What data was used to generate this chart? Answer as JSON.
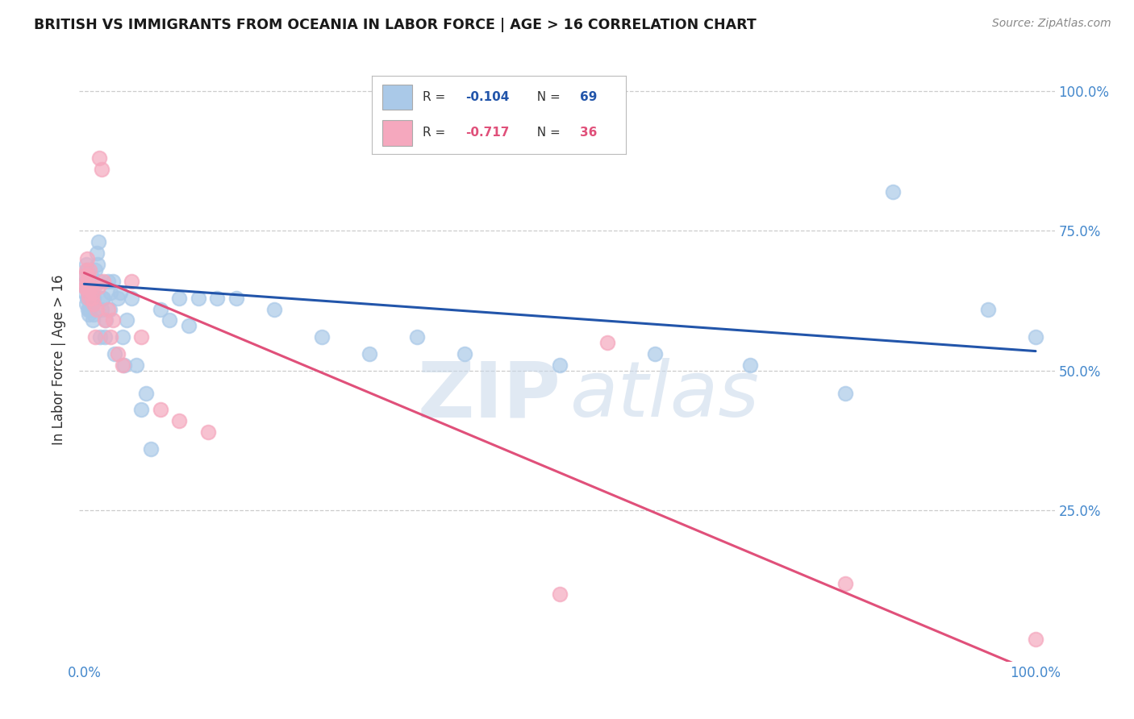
{
  "title": "BRITISH VS IMMIGRANTS FROM OCEANIA IN LABOR FORCE | AGE > 16 CORRELATION CHART",
  "source": "Source: ZipAtlas.com",
  "ylabel": "In Labor Force | Age > 16",
  "british_R": -0.104,
  "british_N": 69,
  "oceania_R": -0.717,
  "oceania_N": 36,
  "british_color": "#aac9e8",
  "oceania_color": "#f5a8be",
  "british_line_color": "#2255aa",
  "oceania_line_color": "#e0507a",
  "british_x": [
    0.001,
    0.001,
    0.002,
    0.002,
    0.002,
    0.003,
    0.003,
    0.003,
    0.004,
    0.004,
    0.004,
    0.005,
    0.005,
    0.005,
    0.006,
    0.006,
    0.007,
    0.007,
    0.008,
    0.008,
    0.009,
    0.01,
    0.01,
    0.011,
    0.012,
    0.013,
    0.014,
    0.015,
    0.016,
    0.017,
    0.018,
    0.019,
    0.02,
    0.022,
    0.023,
    0.025,
    0.027,
    0.028,
    0.03,
    0.032,
    0.035,
    0.038,
    0.04,
    0.042,
    0.045,
    0.05,
    0.055,
    0.06,
    0.065,
    0.07,
    0.08,
    0.09,
    0.1,
    0.11,
    0.12,
    0.14,
    0.16,
    0.2,
    0.25,
    0.3,
    0.35,
    0.4,
    0.5,
    0.6,
    0.7,
    0.8,
    0.85,
    0.95,
    1.0
  ],
  "british_y": [
    0.67,
    0.64,
    0.69,
    0.66,
    0.62,
    0.65,
    0.63,
    0.68,
    0.66,
    0.63,
    0.61,
    0.65,
    0.63,
    0.6,
    0.64,
    0.61,
    0.67,
    0.62,
    0.65,
    0.62,
    0.59,
    0.63,
    0.6,
    0.65,
    0.68,
    0.71,
    0.69,
    0.73,
    0.66,
    0.56,
    0.61,
    0.63,
    0.63,
    0.56,
    0.59,
    0.66,
    0.61,
    0.64,
    0.66,
    0.53,
    0.63,
    0.64,
    0.56,
    0.51,
    0.59,
    0.63,
    0.51,
    0.43,
    0.46,
    0.36,
    0.61,
    0.59,
    0.63,
    0.58,
    0.63,
    0.63,
    0.63,
    0.61,
    0.56,
    0.53,
    0.56,
    0.53,
    0.51,
    0.53,
    0.51,
    0.46,
    0.82,
    0.61,
    0.56
  ],
  "oceania_x": [
    0.001,
    0.001,
    0.002,
    0.002,
    0.003,
    0.003,
    0.004,
    0.004,
    0.005,
    0.005,
    0.006,
    0.007,
    0.008,
    0.009,
    0.01,
    0.012,
    0.013,
    0.015,
    0.016,
    0.018,
    0.02,
    0.022,
    0.025,
    0.028,
    0.03,
    0.035,
    0.04,
    0.05,
    0.06,
    0.08,
    0.1,
    0.13,
    0.5,
    0.55,
    0.8,
    1.0
  ],
  "oceania_y": [
    0.67,
    0.65,
    0.68,
    0.65,
    0.7,
    0.66,
    0.64,
    0.67,
    0.63,
    0.65,
    0.68,
    0.65,
    0.63,
    0.64,
    0.62,
    0.56,
    0.61,
    0.65,
    0.88,
    0.86,
    0.66,
    0.59,
    0.61,
    0.56,
    0.59,
    0.53,
    0.51,
    0.66,
    0.56,
    0.43,
    0.41,
    0.39,
    0.1,
    0.55,
    0.12,
    0.02
  ],
  "xlim": [
    0.0,
    1.0
  ],
  "ylim": [
    0.0,
    1.0
  ],
  "watermark_zip": "ZIP",
  "watermark_atlas": "atlas",
  "background_color": "#ffffff",
  "grid_color": "#cccccc"
}
